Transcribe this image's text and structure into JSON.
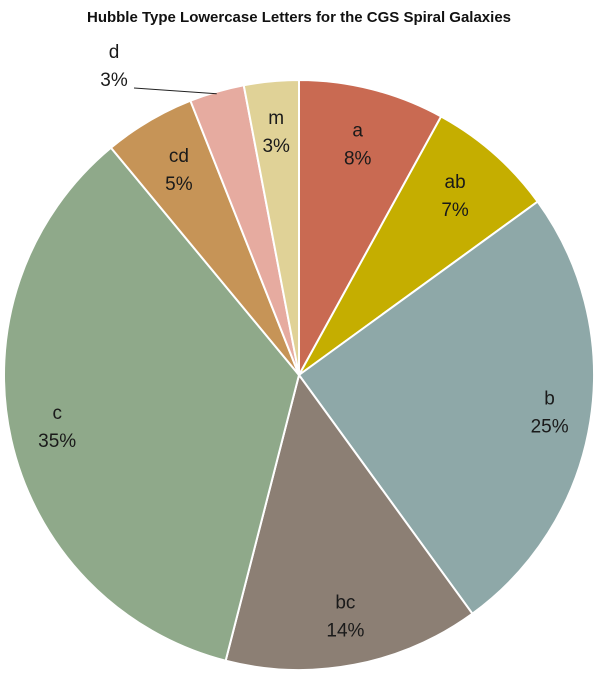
{
  "chart_data": {
    "type": "pie",
    "title": "Hubble Type Lowercase Letters for the CGS Spiral Galaxies",
    "slices": [
      {
        "category": "a",
        "value": 8,
        "display": "8%",
        "color": "#C96A52"
      },
      {
        "category": "ab",
        "value": 7,
        "display": "7%",
        "color": "#C5AE00"
      },
      {
        "category": "b",
        "value": 25,
        "display": "25%",
        "color": "#8EA8A8"
      },
      {
        "category": "bc",
        "value": 14,
        "display": "14%",
        "color": "#8C7F74"
      },
      {
        "category": "c",
        "value": 35,
        "display": "35%",
        "color": "#8FA98A"
      },
      {
        "category": "cd",
        "value": 5,
        "display": "5%",
        "color": "#C69457"
      },
      {
        "category": "d",
        "value": 3,
        "display": "3%",
        "color": "#E6ABA0"
      },
      {
        "category": "m",
        "value": 3,
        "display": "3%",
        "color": "#E0D297"
      }
    ],
    "start_angle": "top (12 o'clock)",
    "direction": "clockwise",
    "legend": "none"
  }
}
